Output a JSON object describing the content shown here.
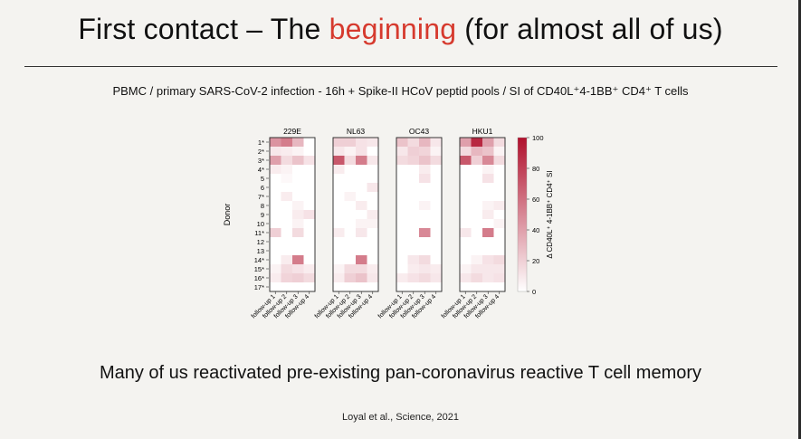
{
  "slide": {
    "title_part1": "First contact – The ",
    "title_accent": "beginning",
    "title_part2": " (for almost all of us)",
    "subtitle": "PBMC / primary SARS-CoV-2 infection - 16h + Spike-II HCoV peptid pools / SI of CD40L⁺4-1BB⁺ CD4⁺ T cells",
    "bottom_text": "Many of us reactivated pre-existing pan-coronavirus reactive T cell memory",
    "citation": "Loyal et al., Science, 2021",
    "accent_color": "#d63a2e"
  },
  "chart_data": {
    "type": "heatmap",
    "panels": [
      "229E",
      "NL63",
      "OC43",
      "HKU1"
    ],
    "ylabel": "Donor",
    "rows": [
      "1*",
      "2*",
      "3*",
      "4*",
      "5",
      "6",
      "7*",
      "8",
      "9",
      "10",
      "11*",
      "12",
      "13",
      "14*",
      "15*",
      "16*",
      "17*"
    ],
    "columns": [
      "follow-up 1",
      "follow-up 2",
      "follow-up 3",
      "follow-up 4"
    ],
    "colorbar_label": "Δ CD40L⁺ 4-1BB⁺ CD4⁺ SI",
    "color_range": [
      0,
      100
    ],
    "colorbar_ticks": [
      0,
      20,
      40,
      60,
      80,
      100
    ],
    "low_color": "#ffffff",
    "high_color": "#b0102c",
    "values": {
      "229E": [
        [
          45,
          55,
          30,
          0
        ],
        [
          10,
          8,
          5,
          0
        ],
        [
          40,
          15,
          25,
          12
        ],
        [
          8,
          5,
          0,
          0
        ],
        [
          0,
          3,
          0,
          0
        ],
        [
          0,
          0,
          0,
          0
        ],
        [
          0,
          8,
          0,
          0
        ],
        [
          0,
          0,
          5,
          0
        ],
        [
          0,
          0,
          8,
          12
        ],
        [
          0,
          0,
          5,
          0
        ],
        [
          20,
          0,
          15,
          0
        ],
        [
          0,
          0,
          0,
          0
        ],
        [
          0,
          0,
          0,
          0
        ],
        [
          0,
          8,
          55,
          0
        ],
        [
          5,
          15,
          12,
          8
        ],
        [
          8,
          18,
          20,
          15
        ],
        [
          0,
          0,
          0,
          0
        ]
      ],
      "NL63": [
        [
          20,
          20,
          12,
          10
        ],
        [
          10,
          5,
          12,
          0
        ],
        [
          70,
          15,
          55,
          10
        ],
        [
          8,
          0,
          0,
          0
        ],
        [
          0,
          0,
          0,
          0
        ],
        [
          0,
          0,
          0,
          10
        ],
        [
          0,
          5,
          0,
          0
        ],
        [
          0,
          0,
          8,
          0
        ],
        [
          0,
          0,
          0,
          8
        ],
        [
          0,
          0,
          5,
          5
        ],
        [
          8,
          0,
          10,
          0
        ],
        [
          0,
          0,
          0,
          0
        ],
        [
          0,
          0,
          0,
          0
        ],
        [
          0,
          0,
          55,
          0
        ],
        [
          5,
          15,
          15,
          8
        ],
        [
          8,
          20,
          25,
          10
        ],
        [
          0,
          0,
          0,
          0
        ]
      ],
      "OC43": [
        [
          25,
          15,
          30,
          10
        ],
        [
          10,
          20,
          18,
          5
        ],
        [
          15,
          18,
          25,
          15
        ],
        [
          0,
          0,
          8,
          0
        ],
        [
          0,
          0,
          12,
          0
        ],
        [
          0,
          0,
          0,
          0
        ],
        [
          0,
          0,
          0,
          0
        ],
        [
          0,
          0,
          5,
          0
        ],
        [
          0,
          0,
          0,
          0
        ],
        [
          0,
          0,
          0,
          0
        ],
        [
          0,
          0,
          50,
          0
        ],
        [
          0,
          0,
          0,
          0
        ],
        [
          0,
          0,
          0,
          0
        ],
        [
          0,
          10,
          15,
          0
        ],
        [
          0,
          8,
          10,
          8
        ],
        [
          8,
          12,
          15,
          10
        ],
        [
          0,
          0,
          0,
          0
        ]
      ],
      "HKU1": [
        [
          40,
          90,
          40,
          15
        ],
        [
          15,
          30,
          25,
          5
        ],
        [
          70,
          20,
          50,
          15
        ],
        [
          0,
          0,
          5,
          0
        ],
        [
          0,
          0,
          12,
          0
        ],
        [
          0,
          0,
          0,
          0
        ],
        [
          0,
          0,
          0,
          0
        ],
        [
          0,
          0,
          5,
          8
        ],
        [
          0,
          0,
          8,
          0
        ],
        [
          0,
          0,
          0,
          5
        ],
        [
          10,
          0,
          55,
          0
        ],
        [
          0,
          0,
          0,
          0
        ],
        [
          0,
          0,
          0,
          0
        ],
        [
          0,
          5,
          12,
          15
        ],
        [
          5,
          10,
          10,
          10
        ],
        [
          10,
          15,
          10,
          12
        ],
        [
          0,
          0,
          0,
          0
        ]
      ]
    }
  }
}
